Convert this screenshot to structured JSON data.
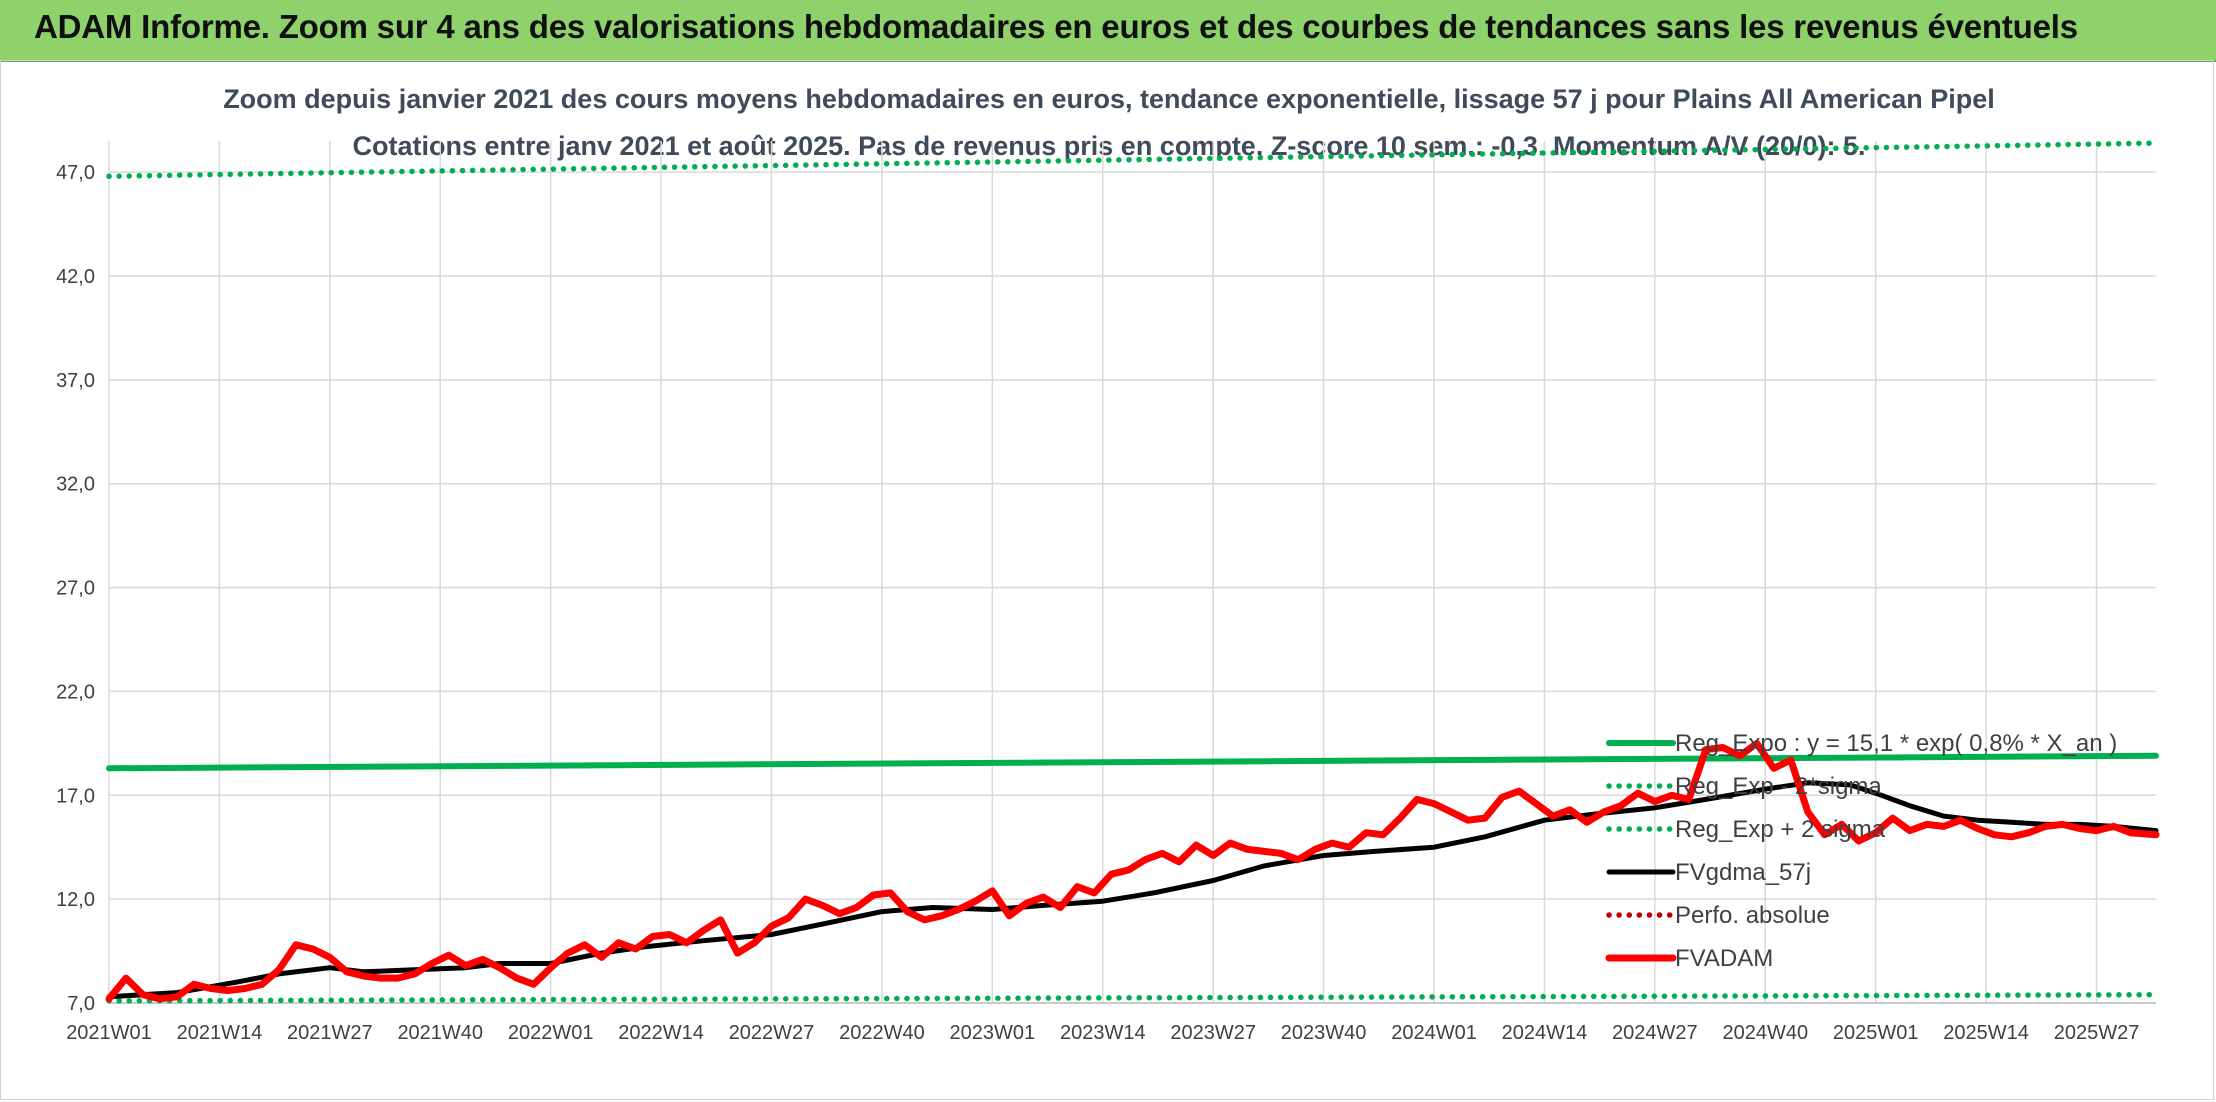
{
  "banner": {
    "title": "ADAM Informe. Zoom sur 4 ans des valorisations hebdomadaires en euros et des courbes de tendances sans les revenus éventuels"
  },
  "colors": {
    "banner_bg": "#8fd16a",
    "reg_green": "#00b050",
    "fvadam_red": "#ff0000",
    "fvgdma_black": "#000000",
    "perfo_red": "#c00000",
    "grid": "#d9d9d9"
  },
  "chart_data": {
    "type": "line",
    "title": "Zoom depuis janvier 2021 des cours moyens hebdomadaires en euros, tendance exponentielle, lissage 57 j pour Plains All American Pipel",
    "subtitle": "Cotations entre janv 2021 et août 2025. Pas de revenus pris en compte. Z-score 10 sem.: -0,3. Momentum A/V (20/0): 5.",
    "xlabel": "",
    "ylabel": "",
    "ylim": [
      7.0,
      48.5
    ],
    "yticks": [
      "7,0",
      "12,0",
      "17,0",
      "22,0",
      "27,0",
      "32,0",
      "37,0",
      "42,0",
      "47,0"
    ],
    "ytick_values": [
      7,
      12,
      17,
      22,
      27,
      32,
      37,
      42,
      47
    ],
    "xticks": [
      "2021W01",
      "2021W14",
      "2021W27",
      "2021W40",
      "2022W01",
      "2022W14",
      "2022W27",
      "2022W40",
      "2023W01",
      "2023W14",
      "2023W27",
      "2023W40",
      "2024W01",
      "2024W14",
      "2024W27",
      "2024W40",
      "2025W01",
      "2025W14",
      "2025W27"
    ],
    "n_weeks": 242,
    "grid": "on",
    "legend_position": "right",
    "series": [
      {
        "name": "Reg_Expo : y = 15,1 * exp( 0,8% *  X_an )",
        "style": "solid-thick",
        "color": "#00b050",
        "x": [
          0,
          241
        ],
        "y": [
          18.3,
          18.9
        ]
      },
      {
        "name": "Reg_Exp - 2*sigma",
        "style": "dotted",
        "color": "#00b050",
        "x": [
          0,
          241
        ],
        "y": [
          7.1,
          7.4
        ]
      },
      {
        "name": "Reg_Exp + 2 sigma",
        "style": "dotted",
        "color": "#00b050",
        "x": [
          0,
          241
        ],
        "y": [
          46.8,
          48.4
        ]
      },
      {
        "name": "FVgdma_57j",
        "style": "solid",
        "color": "#000000",
        "x": [
          0,
          8,
          15,
          20,
          26,
          30,
          36,
          42,
          46,
          52,
          58,
          63,
          70,
          78,
          84,
          91,
          97,
          104,
          110,
          117,
          123,
          130,
          136,
          143,
          149,
          156,
          162,
          169,
          175,
          182,
          188,
          195,
          200,
          205,
          208,
          212,
          216,
          220,
          224,
          228,
          232,
          236,
          241
        ],
        "y": [
          7.3,
          7.5,
          8.0,
          8.4,
          8.7,
          8.5,
          8.6,
          8.7,
          8.9,
          8.9,
          9.4,
          9.7,
          10.0,
          10.3,
          10.8,
          11.4,
          11.6,
          11.5,
          11.7,
          11.9,
          12.3,
          12.9,
          13.6,
          14.1,
          14.3,
          14.5,
          15.0,
          15.8,
          16.1,
          16.4,
          16.8,
          17.3,
          17.6,
          17.5,
          17.1,
          16.5,
          16.0,
          15.8,
          15.7,
          15.6,
          15.6,
          15.5,
          15.3
        ]
      },
      {
        "name": "Perfo. absolue",
        "style": "dotted",
        "color": "#c00000",
        "x": [],
        "y": []
      },
      {
        "name": "FVADAM",
        "style": "solid-thick",
        "color": "#ff0000",
        "x": [
          0,
          2,
          4,
          6,
          8,
          10,
          12,
          14,
          16,
          18,
          20,
          22,
          24,
          26,
          28,
          30,
          32,
          34,
          36,
          38,
          40,
          42,
          44,
          46,
          48,
          50,
          52,
          54,
          56,
          58,
          60,
          62,
          64,
          66,
          68,
          70,
          72,
          74,
          76,
          78,
          80,
          82,
          84,
          86,
          88,
          90,
          92,
          94,
          96,
          98,
          100,
          102,
          104,
          106,
          108,
          110,
          112,
          114,
          116,
          118,
          120,
          122,
          124,
          126,
          128,
          130,
          132,
          134,
          136,
          138,
          140,
          142,
          144,
          146,
          148,
          150,
          152,
          154,
          156,
          158,
          160,
          162,
          164,
          166,
          168,
          170,
          172,
          174,
          176,
          178,
          180,
          182,
          184,
          186,
          188,
          190,
          192,
          194,
          196,
          198,
          200,
          202,
          204,
          206,
          208,
          210,
          212,
          214,
          216,
          218,
          220,
          222,
          224,
          226,
          228,
          230,
          232,
          234,
          236,
          238,
          241
        ],
        "y": [
          7.2,
          8.2,
          7.4,
          7.2,
          7.3,
          7.9,
          7.7,
          7.6,
          7.7,
          7.9,
          8.6,
          9.8,
          9.6,
          9.2,
          8.5,
          8.3,
          8.2,
          8.2,
          8.4,
          8.9,
          9.3,
          8.8,
          9.1,
          8.7,
          8.2,
          7.9,
          8.7,
          9.4,
          9.8,
          9.2,
          9.9,
          9.6,
          10.2,
          10.3,
          9.9,
          10.5,
          11.0,
          9.4,
          9.9,
          10.7,
          11.1,
          12.0,
          11.7,
          11.3,
          11.6,
          12.2,
          12.3,
          11.4,
          11.0,
          11.2,
          11.5,
          11.9,
          12.4,
          11.2,
          11.8,
          12.1,
          11.6,
          12.6,
          12.3,
          13.2,
          13.4,
          13.9,
          14.2,
          13.8,
          14.6,
          14.1,
          14.7,
          14.4,
          14.3,
          14.2,
          13.9,
          14.4,
          14.7,
          14.5,
          15.2,
          15.1,
          15.9,
          16.8,
          16.6,
          16.2,
          15.8,
          15.9,
          16.9,
          17.2,
          16.6,
          16.0,
          16.3,
          15.7,
          16.2,
          16.5,
          17.1,
          16.7,
          17.0,
          16.8,
          19.2,
          19.3,
          18.9,
          19.5,
          18.3,
          18.7,
          16.2,
          15.1,
          15.6,
          14.8,
          15.2,
          15.9,
          15.3,
          15.6,
          15.5,
          15.8,
          15.4,
          15.1,
          15.0,
          15.2,
          15.5,
          15.6,
          15.4,
          15.3,
          15.5,
          15.2,
          15.1
        ]
      }
    ]
  }
}
